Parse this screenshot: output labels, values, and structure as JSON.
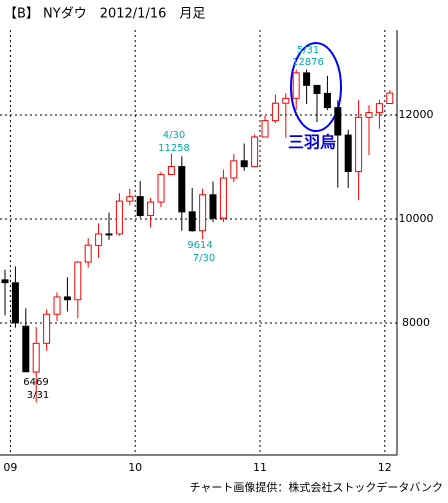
{
  "chart_data": {
    "type": "candlestick",
    "title": "【B】 NYダウ　2012/1/16　月足",
    "footer": "チャート画像提供：株式会社ストックデータバンク",
    "categories": [
      null,
      "09",
      null,
      null,
      null,
      null,
      null,
      null,
      null,
      null,
      null,
      null,
      null,
      "10",
      null,
      null,
      null,
      null,
      null,
      null,
      null,
      null,
      null,
      null,
      null,
      "11",
      null,
      null,
      null,
      null,
      null,
      null,
      null,
      null,
      null,
      null,
      null,
      "12"
    ],
    "open": [
      8829,
      8772,
      7936,
      7056,
      7609,
      8168,
      8500,
      8447,
      9172,
      9492,
      9712,
      9713,
      10343,
      10430,
      10068,
      10325,
      10856,
      11008,
      10137,
      9774,
      10465,
      10016,
      10789,
      11119,
      11007,
      11577,
      11892,
      12227,
      12321,
      12810,
      12569,
      12415,
      12141,
      11613,
      10912,
      11955,
      12046,
      12221
    ],
    "high": [
      9026,
      9088,
      8281,
      7924,
      8259,
      8588,
      8878,
      9187,
      9630,
      9917,
      10119,
      10495,
      10580,
      10729,
      10402,
      10908,
      11258,
      11205,
      10594,
      10584,
      10720,
      10948,
      11244,
      11452,
      11625,
      11986,
      12391,
      12419,
      12876,
      12876,
      12569,
      12754,
      12284,
      11717,
      12284,
      12188,
      12293,
      12482
    ],
    "low": [
      8149,
      7909,
      7050,
      6469,
      7467,
      8039,
      8221,
      8087,
      9064,
      9253,
      9597,
      9678,
      10263,
      10025,
      9835,
      10231,
      10856,
      9774,
      9757,
      9614,
      9936,
      9941,
      10711,
      10929,
      11004,
      11577,
      11846,
      11555,
      12093,
      12210,
      11862,
      12093,
      10604,
      10597,
      10362,
      11231,
      11735,
      12221
    ],
    "close": [
      8776,
      8001,
      7062,
      7608,
      8168,
      8500,
      8447,
      9171,
      9496,
      9712,
      9700,
      10344,
      10428,
      10067,
      10325,
      10857,
      11009,
      10137,
      9774,
      10466,
      10015,
      10788,
      11118,
      11006,
      11578,
      11892,
      12226,
      12320,
      12811,
      12570,
      12414,
      12143,
      11614,
      10913,
      11955,
      12046,
      12218,
      12422
    ],
    "up_color": "#ff0000",
    "down_color": "#000000",
    "ylim": [
      5460,
      13635
    ],
    "yticks": [
      8000,
      10000,
      12000
    ],
    "grid": true,
    "annotations": [
      "5/31",
      "12876",
      "4/30",
      "11258",
      "9614",
      "7/30",
      "6469",
      "3/31",
      "三羽烏"
    ]
  }
}
